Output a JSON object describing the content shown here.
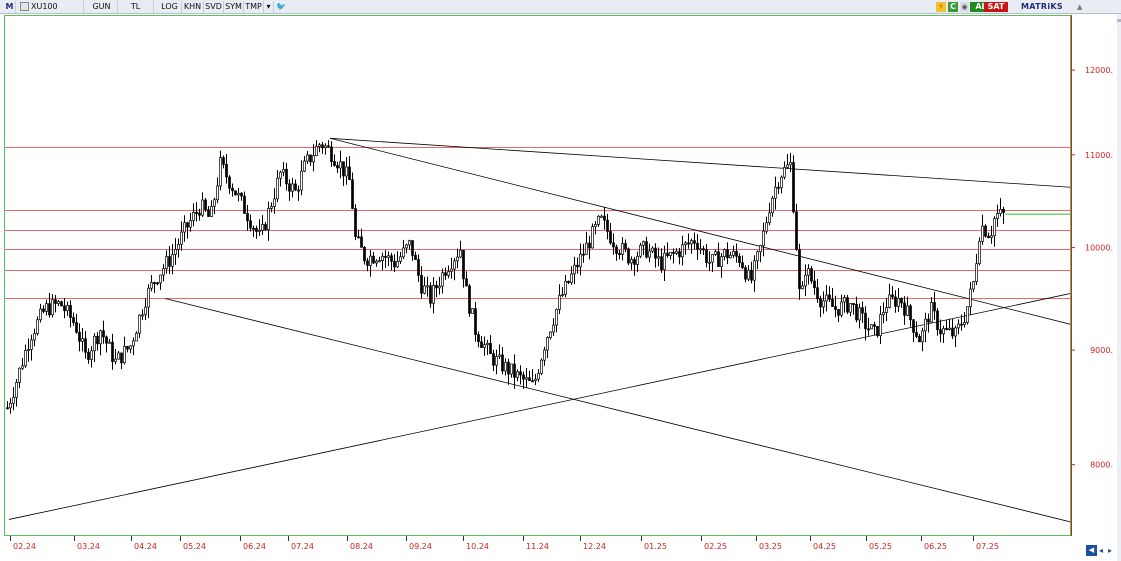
{
  "toolbar": {
    "menu_label": "M",
    "symbol": "XU100",
    "buttons": [
      "GUN",
      "TL",
      "LOG",
      "KHN",
      "SVD",
      "SYM",
      "TMP"
    ],
    "al_label": "AL",
    "sat_label": "SAT",
    "brand": "MATRiKS",
    "colors": {
      "al": "#1f8a1f",
      "sat": "#c81414",
      "brand": "#1d2f7a"
    }
  },
  "chart_data": {
    "type": "candlestick",
    "symbol": "XU100",
    "x_ticks": [
      "02.24",
      "03.24",
      "04.24",
      "05.24",
      "06.24",
      "07.24",
      "08.24",
      "09.24",
      "10.24",
      "11.24",
      "12.24",
      "01.25",
      "02.25",
      "03.25",
      "04.25",
      "05.25",
      "06.25",
      "07.25"
    ],
    "y_ticks": [
      8000,
      9000,
      10000,
      11000,
      12000
    ],
    "y_tick_labels": [
      "8000.",
      "9000.",
      "10000.",
      "11000.",
      "12000."
    ],
    "ylim": [
      7450,
      12700
    ],
    "log_scale": true,
    "price_path": [
      [
        0,
        8440
      ],
      [
        10,
        8700
      ],
      [
        25,
        9150
      ],
      [
        40,
        9400
      ],
      [
        55,
        9450
      ],
      [
        70,
        9250
      ],
      [
        80,
        8950
      ],
      [
        95,
        9200
      ],
      [
        110,
        8900
      ],
      [
        125,
        9050
      ],
      [
        140,
        9500
      ],
      [
        150,
        9700
      ],
      [
        165,
        9900
      ],
      [
        180,
        10200
      ],
      [
        195,
        10450
      ],
      [
        205,
        10300
      ],
      [
        215,
        10900
      ],
      [
        225,
        10700
      ],
      [
        240,
        10400
      ],
      [
        255,
        10100
      ],
      [
        265,
        10450
      ],
      [
        275,
        10800
      ],
      [
        290,
        10600
      ],
      [
        300,
        10900
      ],
      [
        315,
        11150
      ],
      [
        325,
        11050
      ],
      [
        335,
        10900
      ],
      [
        345,
        10700
      ],
      [
        350,
        10100
      ],
      [
        360,
        9900
      ],
      [
        375,
        9950
      ],
      [
        390,
        9850
      ],
      [
        405,
        10050
      ],
      [
        415,
        9650
      ],
      [
        425,
        9500
      ],
      [
        440,
        9800
      ],
      [
        455,
        10000
      ],
      [
        460,
        9600
      ],
      [
        470,
        9200
      ],
      [
        485,
        8950
      ],
      [
        500,
        8850
      ],
      [
        515,
        8750
      ],
      [
        528,
        8680
      ],
      [
        540,
        9100
      ],
      [
        555,
        9500
      ],
      [
        570,
        9800
      ],
      [
        585,
        10100
      ],
      [
        595,
        10300
      ],
      [
        610,
        10050
      ],
      [
        625,
        9900
      ],
      [
        640,
        10000
      ],
      [
        655,
        9850
      ],
      [
        670,
        9950
      ],
      [
        690,
        10100
      ],
      [
        705,
        9850
      ],
      [
        720,
        9950
      ],
      [
        735,
        9900
      ],
      [
        745,
        9650
      ],
      [
        755,
        10000
      ],
      [
        765,
        10500
      ],
      [
        775,
        10800
      ],
      [
        785,
        10900
      ],
      [
        790,
        10200
      ],
      [
        795,
        9400
      ],
      [
        800,
        9800
      ],
      [
        815,
        9500
      ],
      [
        830,
        9400
      ],
      [
        845,
        9450
      ],
      [
        860,
        9250
      ],
      [
        870,
        9150
      ],
      [
        880,
        9450
      ],
      [
        895,
        9500
      ],
      [
        905,
        9300
      ],
      [
        915,
        9100
      ],
      [
        925,
        9400
      ],
      [
        935,
        9200
      ],
      [
        950,
        9150
      ],
      [
        960,
        9350
      ],
      [
        968,
        9650
      ],
      [
        975,
        10250
      ],
      [
        985,
        10150
      ],
      [
        990,
        10350
      ],
      [
        1000,
        10350
      ]
    ],
    "horizontal_levels": [
      11100,
      10400,
      10190,
      10000,
      9780,
      9500
    ],
    "trendlines": [
      {
        "from": [
          325,
          11200
        ],
        "to": [
          1066,
          10650
        ]
      },
      {
        "from": [
          325,
          11200
        ],
        "to": [
          1066,
          9250
        ]
      },
      {
        "from": [
          160,
          9500
        ],
        "to": [
          1066,
          7550
        ]
      },
      {
        "from": [
          4,
          7570
        ],
        "to": [
          1066,
          9550
        ]
      }
    ],
    "current_level": {
      "from": 1000,
      "to": 1066,
      "value": 10360
    },
    "colors": {
      "candle": "#000000",
      "levels": "#e26a6a",
      "trend": "#000000",
      "yaxis": "#cc2222",
      "xaxis_text": "#cc2222",
      "current": "#55cc55"
    }
  }
}
